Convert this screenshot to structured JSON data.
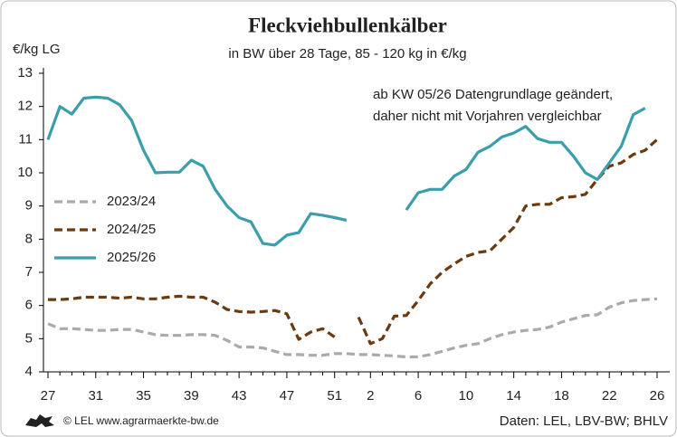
{
  "chart_data": {
    "type": "line",
    "title": "Fleckviehbullenkälber",
    "subtitle": "in BW über 28 Tage, 85 - 120 kg in €/kg",
    "y_label": "€/kg LG",
    "annotation": [
      "ab KW 05/26 Datengrundlage geändert,",
      "daher nicht mit Vorjahren vergleichbar"
    ],
    "source": "Daten: LEL, LBV-BW; BHLV",
    "copyright": "© LEL www.agrarmaerkte-bw.de",
    "categories": [
      "27",
      null,
      null,
      null,
      "31",
      null,
      null,
      null,
      "35",
      null,
      null,
      null,
      "39",
      null,
      null,
      null,
      "43",
      null,
      null,
      null,
      "47",
      null,
      null,
      null,
      "51",
      null,
      null,
      "2",
      null,
      null,
      null,
      "6",
      null,
      null,
      null,
      "10",
      null,
      null,
      null,
      "14",
      null,
      null,
      null,
      "18",
      null,
      null,
      null,
      "22",
      null,
      null,
      null,
      "26"
    ],
    "ylim": [
      4,
      13
    ],
    "yticks": [
      4,
      5,
      6,
      7,
      8,
      9,
      10,
      11,
      12,
      13
    ],
    "grid": false,
    "legend": "left",
    "series": [
      {
        "name": "2023/24",
        "color": "#aaaaaa",
        "dash": true,
        "values": [
          5.45,
          5.3,
          5.3,
          5.28,
          5.25,
          5.25,
          5.28,
          5.28,
          5.2,
          5.12,
          5.1,
          5.1,
          5.12,
          5.12,
          5.1,
          4.95,
          4.75,
          4.75,
          4.72,
          4.62,
          4.52,
          4.52,
          4.5,
          4.5,
          4.55,
          4.55,
          4.52,
          4.52,
          4.5,
          4.48,
          4.45,
          4.45,
          4.52,
          4.62,
          4.72,
          4.8,
          4.85,
          5.0,
          5.12,
          5.2,
          5.25,
          5.28,
          5.35,
          5.5,
          5.6,
          5.7,
          5.72,
          5.95,
          6.08,
          6.15,
          6.18,
          6.2
        ]
      },
      {
        "name": "2024/25",
        "color": "#6b3a0f",
        "dash": true,
        "values": [
          6.18,
          6.18,
          6.2,
          6.25,
          6.25,
          6.25,
          6.22,
          6.25,
          6.2,
          6.2,
          6.25,
          6.28,
          6.25,
          6.25,
          6.1,
          5.88,
          5.82,
          5.8,
          5.82,
          5.85,
          5.75,
          4.98,
          5.2,
          5.3,
          5.05,
          null,
          5.65,
          4.85,
          5.0,
          5.68,
          5.7,
          6.15,
          6.65,
          7.0,
          7.25,
          7.48,
          7.6,
          7.65,
          8.0,
          8.35,
          9.0,
          9.05,
          9.05,
          9.25,
          9.28,
          9.35,
          9.8,
          10.2,
          10.3,
          10.55,
          10.68,
          11.0
        ]
      },
      {
        "name": "2025/26",
        "color": "#3a9eab",
        "dash": false,
        "values": [
          11.0,
          12.0,
          11.77,
          12.25,
          12.28,
          12.25,
          12.05,
          11.58,
          10.68,
          10.0,
          10.02,
          10.02,
          10.38,
          10.2,
          9.5,
          9.0,
          8.65,
          8.52,
          7.87,
          7.82,
          8.12,
          8.2,
          8.77,
          8.72,
          8.65,
          8.57,
          null,
          null,
          null,
          null,
          8.88,
          9.4,
          9.5,
          9.5,
          9.9,
          10.1,
          10.62,
          10.8,
          11.08,
          11.2,
          11.4,
          11.03,
          10.92,
          10.92,
          10.5,
          10.0,
          9.8,
          10.3,
          10.8,
          11.75,
          11.95,
          null
        ]
      }
    ]
  }
}
